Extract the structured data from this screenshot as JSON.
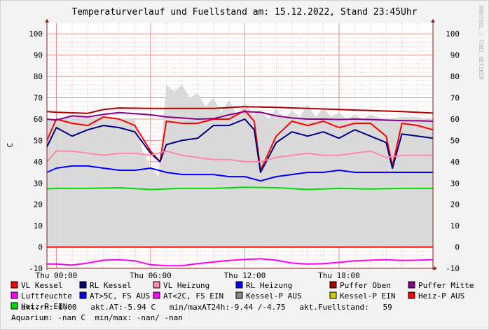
{
  "chart_data": {
    "type": "line",
    "title": "Temperaturverlauf und Fuellstand am: 15.12.2022, Stand 23:45Uhr",
    "ylabel": "C",
    "watermark": "RRDTOOL / TOBI OETIKER",
    "ylim": [
      -10,
      105
    ],
    "yticks": [
      -10,
      0,
      10,
      20,
      30,
      40,
      50,
      60,
      70,
      80,
      90,
      100
    ],
    "xlim_hours": [
      -0.6,
      23.98
    ],
    "xticks": [
      {
        "hour": 0,
        "label": "Thu 00:00"
      },
      {
        "hour": 6,
        "label": "Thu 06:00"
      },
      {
        "hour": 12,
        "label": "Thu 12:00"
      },
      {
        "hour": 18,
        "label": "Thu 18:00"
      }
    ],
    "grid": true,
    "colors": {
      "background": "#f3f3f3",
      "plot_bg": "#ffffff",
      "grid_minor": "#f2b8b8",
      "grid_major": "#e88b8b",
      "axis": "#8b1a1a",
      "fill": "#d8d8d8"
    },
    "series": [
      {
        "name": "VL Kessel",
        "color": "#ff0000",
        "x": [
          -0.6,
          0,
          1,
          2,
          3,
          4,
          5,
          6,
          6.6,
          7,
          8,
          9,
          10,
          11,
          12,
          12.6,
          13,
          14,
          15,
          16,
          17,
          18,
          19,
          20,
          21,
          21.4,
          22,
          23,
          23.98
        ],
        "y": [
          50,
          60,
          58,
          57,
          61,
          60,
          57,
          45,
          40,
          59,
          58,
          58,
          60,
          60,
          64,
          59,
          36,
          52,
          59,
          57,
          59,
          56,
          58,
          58,
          52,
          38,
          58,
          57,
          55
        ]
      },
      {
        "name": "RL Kessel",
        "color": "#000080",
        "x": [
          -0.6,
          0,
          1,
          2,
          3,
          4,
          5,
          6,
          6.6,
          7,
          8,
          9,
          10,
          11,
          12,
          12.6,
          13,
          14,
          15,
          16,
          17,
          18,
          19,
          20,
          21,
          21.4,
          22,
          23,
          23.98
        ],
        "y": [
          47,
          56,
          52,
          55,
          57,
          56,
          54,
          44,
          40,
          48,
          50,
          51,
          57,
          57,
          60,
          55,
          35,
          49,
          54,
          52,
          54,
          51,
          55,
          52,
          49,
          37,
          53,
          52,
          51
        ]
      },
      {
        "name": "VL Heizung",
        "color": "#ff88aa",
        "x": [
          -0.6,
          0,
          1,
          2,
          3,
          4,
          5,
          6,
          7,
          8,
          9,
          10,
          11,
          12,
          13,
          14,
          15,
          16,
          17,
          18,
          19,
          20,
          21,
          22,
          23,
          23.98
        ],
        "y": [
          40,
          45,
          45,
          44,
          43,
          44,
          44,
          43,
          45,
          43,
          42,
          41,
          41,
          40,
          40,
          42,
          43,
          44,
          43,
          43,
          44,
          45,
          42,
          43,
          43,
          43
        ]
      },
      {
        "name": "RL Heizung",
        "color": "#0000ff",
        "x": [
          -0.6,
          0,
          1,
          2,
          3,
          4,
          5,
          6,
          7,
          8,
          9,
          10,
          11,
          12,
          13,
          14,
          15,
          16,
          17,
          18,
          19,
          20,
          21,
          22,
          23,
          23.98
        ],
        "y": [
          35,
          37,
          38,
          38,
          37,
          36,
          36,
          37,
          35,
          34,
          34,
          34,
          33,
          33,
          31,
          33,
          34,
          35,
          35,
          36,
          35,
          35,
          35,
          35,
          35,
          35
        ]
      },
      {
        "name": "Puffer Oben",
        "color": "#aa0000",
        "x": [
          -0.6,
          0,
          2,
          3,
          4,
          6,
          8,
          10,
          12,
          14,
          16,
          18,
          20,
          22,
          23.98
        ],
        "y": [
          63.5,
          63.2,
          62.7,
          64.5,
          65.2,
          65,
          65,
          65,
          65.8,
          65.5,
          65,
          64.5,
          64,
          63.5,
          62.8
        ]
      },
      {
        "name": "Puffer Mitte",
        "color": "#880088",
        "x": [
          -0.6,
          0,
          1,
          2,
          3,
          4,
          5,
          6,
          7,
          8,
          9,
          10,
          11,
          12,
          13,
          14,
          15,
          16,
          17,
          18,
          19,
          20,
          21,
          22,
          23,
          23.98
        ],
        "y": [
          60,
          59.5,
          61.5,
          61,
          62.2,
          63,
          62.5,
          62,
          61,
          60.5,
          60,
          60.2,
          62,
          63.5,
          63.2,
          61.5,
          60.5,
          60,
          60,
          59.8,
          60,
          59.8,
          59.5,
          59.3,
          59.2,
          59
        ]
      },
      {
        "name": "Luftfeuchte",
        "color": "#ff00ff",
        "x": [],
        "y": []
      },
      {
        "name": "AT>5C, FS AUS",
        "color": "#0000ff",
        "x": [],
        "y": []
      },
      {
        "name": "AT<2C, FS EIN",
        "color": "#ff00ff",
        "x": [
          -0.6,
          0,
          1,
          2,
          3,
          4,
          5,
          6,
          7,
          8,
          9,
          10,
          11,
          12,
          13,
          14,
          15,
          16,
          17,
          18,
          19,
          20,
          21,
          22,
          23,
          23.98
        ],
        "y": [
          -8,
          -8,
          -8.5,
          -7.5,
          -6.2,
          -6,
          -6.5,
          -8.3,
          -8.8,
          -8.8,
          -7.8,
          -7,
          -6.3,
          -5.8,
          -5.5,
          -6.2,
          -7.5,
          -8,
          -7.8,
          -7.2,
          -6.5,
          -6.2,
          -6,
          -6.3,
          -6.2,
          -6
        ]
      },
      {
        "name": "Kessel-P AUS",
        "color": "#888888",
        "x": [],
        "y": []
      },
      {
        "name": "Kessel-P EIN",
        "color": "#cccc00",
        "x": [],
        "y": []
      },
      {
        "name": "Heiz-P AUS",
        "color": "#ff0000",
        "x": [
          -0.6,
          23.98
        ],
        "y": [
          0,
          0
        ]
      },
      {
        "name": "Heiz-P EIN",
        "color": "#00dd00",
        "x": [
          -0.6,
          0,
          2,
          4,
          6,
          8,
          10,
          12,
          14,
          16,
          18,
          20,
          22,
          23.98
        ],
        "y": [
          27.3,
          27.5,
          27.5,
          27.8,
          27,
          27.5,
          27.5,
          28,
          27.8,
          27,
          27.5,
          27.2,
          27.5,
          27.5
        ]
      }
    ],
    "area": {
      "name": "Fuellstand",
      "color": "#d8d8d8",
      "x": [
        -0.6,
        0,
        1,
        2,
        3,
        4,
        5,
        5.5,
        6,
        6.5,
        7,
        7.5,
        8,
        8.5,
        9,
        9.5,
        10,
        10.5,
        11,
        11.5,
        12,
        12.5,
        13,
        13.5,
        14,
        14.5,
        15,
        15.5,
        16,
        16.5,
        17,
        17.5,
        18,
        18.5,
        19,
        19.5,
        20,
        21,
        22,
        23,
        23.98
      ],
      "y": [
        60,
        60,
        61,
        61,
        61,
        60,
        60,
        45,
        38,
        33,
        76,
        73,
        76,
        70,
        72,
        66,
        70,
        63,
        69,
        62,
        68,
        62,
        64,
        60,
        65,
        60,
        64,
        61,
        67,
        61,
        65,
        61,
        63,
        60,
        62,
        60,
        62,
        60,
        61,
        61,
        59
      ]
    },
    "legend": [
      {
        "label": "VL Kessel",
        "color": "#ff0000"
      },
      {
        "label": "RL Kessel",
        "color": "#000080"
      },
      {
        "label": "VL Heizung",
        "color": "#ff88aa"
      },
      {
        "label": "RL Heizung",
        "color": "#0000ff"
      },
      {
        "label": "Puffer Oben",
        "color": "#aa0000"
      },
      {
        "label": "Puffer Mitte",
        "color": "#880088"
      },
      {
        "label": "Luftfeuchte",
        "color": "#ff00ff"
      },
      {
        "label": "AT>5C, FS AUS",
        "color": "#0000ff"
      },
      {
        "label": "AT<2C, FS EIN",
        "color": "#ff00ff"
      },
      {
        "label": "Kessel-P AUS",
        "color": "#888888"
      },
      {
        "label": "Kessel-P EIN",
        "color": "#cccc00"
      },
      {
        "label": "Heiz-P AUS",
        "color": "#ff0000"
      },
      {
        "label": "Heiz-P EIN",
        "color": "#00dd00"
      }
    ],
    "status_line1": "akt.rH: 0.00   akt.AT:-5.94 C   min/maxAT24h:-9.44 /-4.75   akt.Fuellstand:   59",
    "status_line2": "Aquarium: -nan C  min/max: -nan/ -nan"
  }
}
